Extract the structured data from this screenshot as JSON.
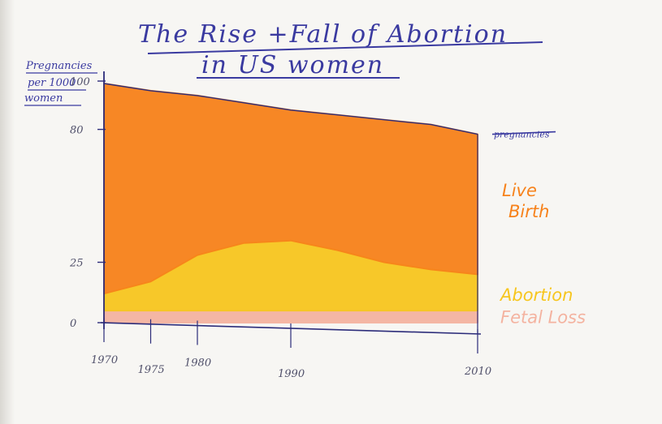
{
  "chart_data": {
    "type": "area",
    "title_lines": [
      "The Rise +Fall of Abortion",
      "in US women"
    ],
    "ylabel_lines": [
      "Pregnancies",
      "per 1000",
      "women"
    ],
    "yticks": [
      {
        "value": 0,
        "label": "0"
      },
      {
        "value": 25,
        "label": "25"
      },
      {
        "value": 80,
        "label": "80"
      },
      {
        "value": 100,
        "label": "100"
      }
    ],
    "ylim": [
      0,
      100
    ],
    "xticks": [
      {
        "value": 1970,
        "label": "1970"
      },
      {
        "value": 1975,
        "label": "1975"
      },
      {
        "value": 1980,
        "label": "1980"
      },
      {
        "value": 1990,
        "label": "1990"
      },
      {
        "value": 2010,
        "label": "2010"
      }
    ],
    "x": [
      1970,
      1975,
      1980,
      1985,
      1990,
      1995,
      2000,
      2005,
      2010
    ],
    "stacking": "stacked",
    "series": [
      {
        "name": "Fetal Loss",
        "color": "#f4b3a0",
        "values": [
          5,
          5,
          5,
          5,
          5,
          5,
          5,
          5,
          5
        ]
      },
      {
        "name": "Abortion",
        "color": "#f7c61f",
        "values": [
          7,
          12,
          23,
          28,
          29,
          25,
          20,
          17,
          15
        ]
      },
      {
        "name": "Live Birth",
        "color": "#f7821b",
        "values": [
          87,
          79,
          66,
          58,
          54,
          56,
          59,
          60,
          58
        ]
      }
    ],
    "top_label": "pregnancies",
    "grid": false,
    "legend_placement": "right"
  }
}
